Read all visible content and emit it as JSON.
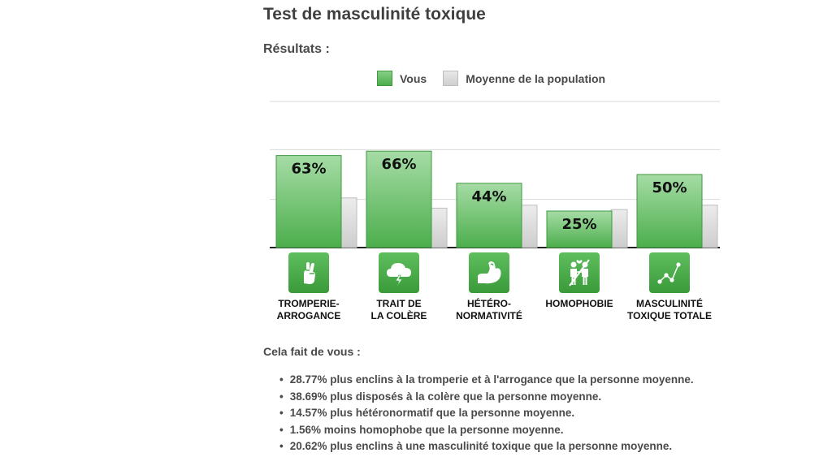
{
  "page": {
    "title": "Test de masculinité toxique",
    "results_label": "Résultats :"
  },
  "legend": {
    "you": "Vous",
    "average": "Moyenne de la population"
  },
  "colors": {
    "you": "#5cb85c",
    "average": "#d6d6d6",
    "icon_bg": "#4cae4c"
  },
  "categories": [
    {
      "label": "TROMPERIE-\nARROGANCE",
      "icon": "crossed-fingers-icon"
    },
    {
      "label": "TRAIT DE\nLA COLÈRE",
      "icon": "storm-cloud-icon"
    },
    {
      "label": "HÉTÉRO-\nNORMATIVITÉ",
      "icon": "flexed-arm-icon"
    },
    {
      "label": "HOMOPHOBIE",
      "icon": "couple-icon"
    },
    {
      "label": "MASCULINITÉ\nTOXIQUE TOTALE",
      "icon": "connected-dots-icon"
    }
  ],
  "chart_data": {
    "type": "bar",
    "categories": [
      "TROMPERIE-ARROGANCE",
      "TRAIT DE LA COLÈRE",
      "HÉTÉRO-NORMATIVITÉ",
      "HOMOPHOBIE",
      "MASCULINITÉ TOXIQUE TOTALE"
    ],
    "series": [
      {
        "name": "Vous",
        "values": [
          63,
          66,
          44,
          25,
          50
        ],
        "labels": [
          "63%",
          "66%",
          "44%",
          "25%",
          "50%"
        ]
      },
      {
        "name": "Moyenne de la population",
        "values": [
          34,
          27,
          29,
          26,
          29
        ]
      }
    ],
    "ylim": [
      0,
      100
    ],
    "grid": true,
    "legend": "top"
  },
  "summary": {
    "intro": "Cela fait de vous :",
    "items": [
      "28.77% plus enclins à la tromperie et à l'arrogance que la personne moyenne.",
      "38.69% plus disposés à la colère que la personne moyenne.",
      "14.57% plus hétéronormatif que la personne moyenne.",
      "1.56% moins homophobe que la personne moyenne.",
      "20.62% plus enclins à une masculinité toxique que la personne moyenne."
    ]
  }
}
